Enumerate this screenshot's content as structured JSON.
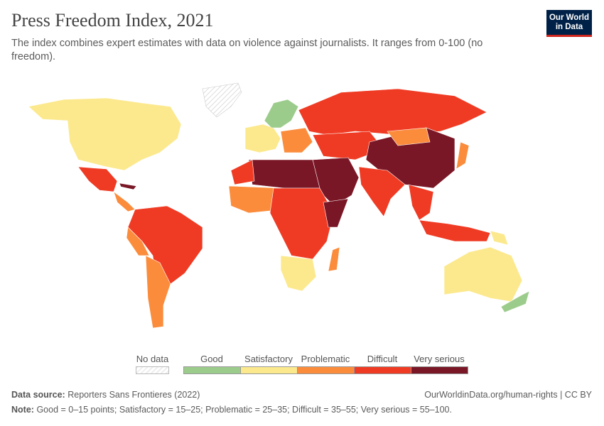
{
  "header": {
    "title": "Press Freedom Index, 2021",
    "subtitle": "The index combines expert estimates with data on violence against journalists. It ranges from 0-100 (no freedom).",
    "logo": "Our World in Data"
  },
  "legend": {
    "no_data": "No data",
    "no_data_color": "#eeeeee",
    "bins": [
      {
        "label": "Good",
        "color": "#9ccc8c"
      },
      {
        "label": "Satisfactory",
        "color": "#fce98e"
      },
      {
        "label": "Problematic",
        "color": "#fb8c3c"
      },
      {
        "label": "Difficult",
        "color": "#ef3b24"
      },
      {
        "label": "Very serious",
        "color": "#7a1726"
      }
    ]
  },
  "footer": {
    "source_label": "Data source:",
    "source": "Reporters Sans Frontieres (2022)",
    "url": "OurWorldinData.org/human-rights | CC BY",
    "note_label": "Note:",
    "note": "Good = 0–15 points; Satisfactory = 15–25; Problematic = 25–35; Difficult = 35–55; Very serious = 55–100."
  }
}
